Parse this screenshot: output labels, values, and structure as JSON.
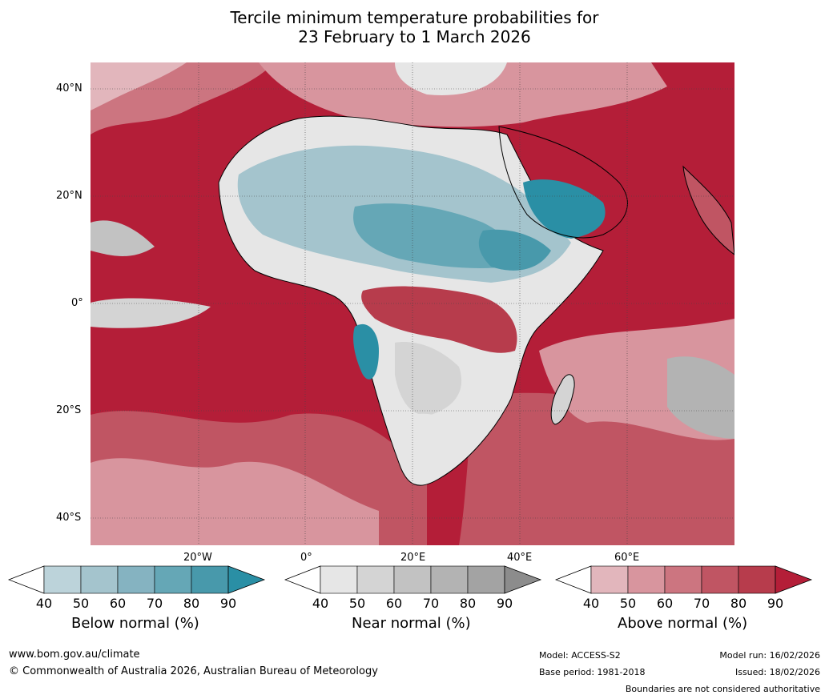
{
  "title": {
    "line1": "Tercile minimum temperature probabilities for",
    "line2": "23 February to 1 March 2026"
  },
  "map": {
    "lat_labels": [
      "40°N",
      "20°N",
      "0°",
      "20°S",
      "40°S"
    ],
    "lon_labels": [
      "20°W",
      "0°",
      "20°E",
      "40°E",
      "60°E"
    ]
  },
  "colorbars": {
    "below": {
      "label": "Below normal (%)",
      "ticks": [
        "40",
        "50",
        "60",
        "70",
        "80",
        "90"
      ],
      "colors": [
        "#ffffff",
        "#bcd3da",
        "#a4c4cd",
        "#85b3c1",
        "#65a7b6",
        "#4899ab",
        "#2a8fa5"
      ]
    },
    "near": {
      "label": "Near normal (%)",
      "ticks": [
        "40",
        "50",
        "60",
        "70",
        "80",
        "90"
      ],
      "colors": [
        "#ffffff",
        "#e6e6e6",
        "#d4d4d4",
        "#c2c2c2",
        "#b3b3b3",
        "#a3a3a3",
        "#8c8c8c"
      ]
    },
    "above": {
      "label": "Above normal (%)",
      "ticks": [
        "40",
        "50",
        "60",
        "70",
        "80",
        "90"
      ],
      "colors": [
        "#ffffff",
        "#e2b6bc",
        "#d8959e",
        "#cc7580",
        "#c05563",
        "#b73c4c",
        "#b41e38"
      ]
    }
  },
  "footer": {
    "website": "www.bom.gov.au/climate",
    "copyright": "© Commonwealth of Australia 2026, Australian Bureau of Meteorology",
    "model": "Model: ACCESS-S2",
    "base_period": "Base period: 1981-2018",
    "model_run": "Model run: 16/02/2026",
    "issued": "Issued: 18/02/2026",
    "disclaimer": "Boundaries are not considered authoritative"
  }
}
